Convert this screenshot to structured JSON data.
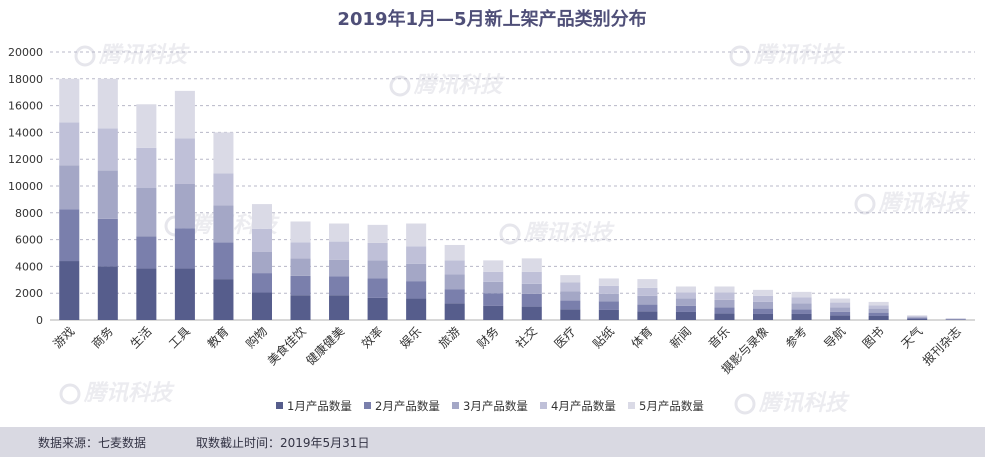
{
  "chart_data": {
    "type": "bar",
    "stacked": true,
    "title": "2019年1月—5月新上架产品类别分布",
    "xlabel": "",
    "ylabel": "",
    "ylim": [
      0,
      20000
    ],
    "yticks": [
      0,
      2000,
      4000,
      6000,
      8000,
      10000,
      12000,
      14000,
      16000,
      18000,
      20000
    ],
    "grid": true,
    "legend_position": "bottom",
    "categories": [
      "游戏",
      "商务",
      "生活",
      "工具",
      "教育",
      "购物",
      "美食佳饮",
      "健康健美",
      "效率",
      "娱乐",
      "旅游",
      "财务",
      "社交",
      "医疗",
      "贴纸",
      "体育",
      "新闻",
      "音乐",
      "摄影与录像",
      "参考",
      "导航",
      "图书",
      "天气",
      "报刊杂志"
    ],
    "series": [
      {
        "name": "1月产品数量",
        "color": "#565d8c",
        "values": [
          4400,
          4000,
          3850,
          3850,
          3050,
          2050,
          1850,
          1850,
          1650,
          1600,
          1250,
          1050,
          1000,
          800,
          750,
          650,
          600,
          500,
          450,
          450,
          350,
          300,
          80,
          30
        ]
      },
      {
        "name": "2月产品数量",
        "color": "#7a7fac",
        "values": [
          3850,
          3550,
          2400,
          3000,
          2750,
          1450,
          1450,
          1400,
          1450,
          1300,
          1050,
          950,
          950,
          650,
          650,
          500,
          450,
          450,
          400,
          350,
          250,
          250,
          70,
          30
        ]
      },
      {
        "name": "3月产品数量",
        "color": "#a4a7c6",
        "values": [
          3300,
          3600,
          3600,
          3300,
          2750,
          1600,
          1300,
          1250,
          1350,
          1300,
          1100,
          850,
          750,
          700,
          550,
          650,
          550,
          550,
          500,
          450,
          350,
          300,
          70,
          30
        ]
      },
      {
        "name": "4月产品数量",
        "color": "#bfc0d8",
        "values": [
          3200,
          3150,
          3000,
          3400,
          2400,
          1700,
          1200,
          1350,
          1300,
          1300,
          1050,
          750,
          900,
          650,
          600,
          600,
          450,
          550,
          450,
          450,
          350,
          250,
          70,
          20
        ]
      },
      {
        "name": "5月产品数量",
        "color": "#dadae6",
        "values": [
          3250,
          3700,
          3250,
          3550,
          3050,
          1850,
          1550,
          1350,
          1350,
          1700,
          1150,
          850,
          1000,
          550,
          550,
          650,
          450,
          450,
          450,
          400,
          300,
          250,
          60,
          20
        ]
      }
    ]
  },
  "watermark": "腾讯科技",
  "footer": {
    "source": "数据来源：七麦数据",
    "cutoff": "取数截止时间：2019年5月31日"
  }
}
